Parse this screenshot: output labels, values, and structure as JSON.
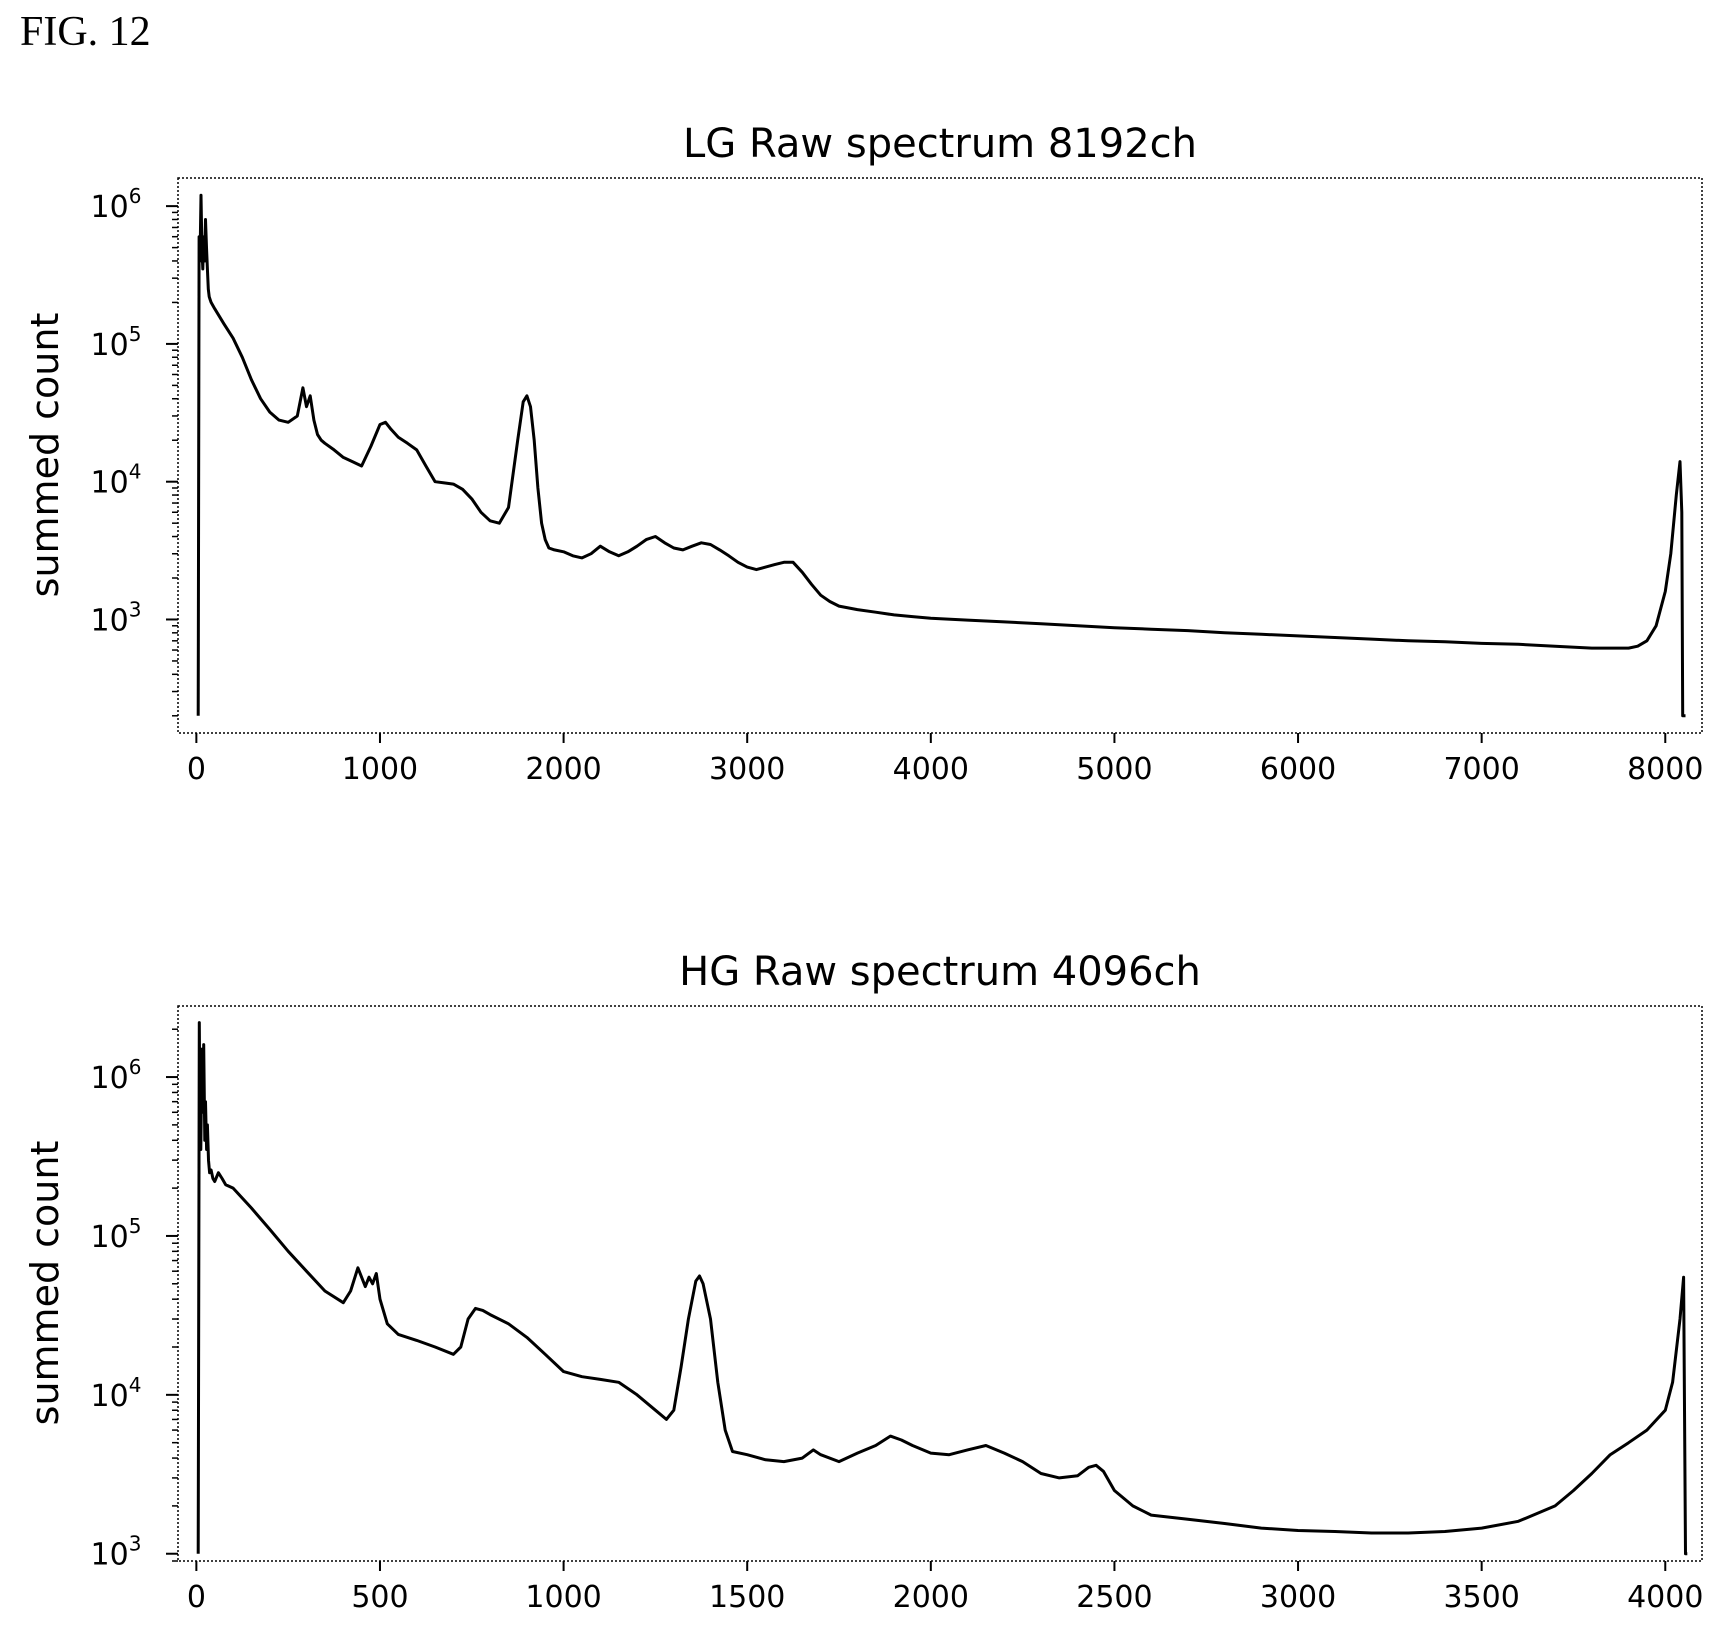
{
  "figure_label": "FIG. 12",
  "chart_data": [
    {
      "type": "line",
      "title": "LG Raw spectrum 8192ch",
      "xlabel": "",
      "ylabel": "summed count",
      "yscale": "log",
      "xlim": [
        -100,
        8200
      ],
      "ylim": [
        150,
        1600000
      ],
      "x_ticks": [
        0,
        1000,
        2000,
        3000,
        4000,
        5000,
        6000,
        7000,
        8000
      ],
      "x_tick_labels": [
        "0",
        "1000",
        "2000",
        "3000",
        "4000",
        "5000",
        "6000",
        "7000",
        "8000"
      ],
      "y_ticks": [
        1000,
        10000,
        100000,
        1000000
      ],
      "y_tick_labels": [
        [
          "10",
          "3"
        ],
        [
          "10",
          "4"
        ],
        [
          "10",
          "5"
        ],
        [
          "10",
          "6"
        ]
      ],
      "grid": false,
      "series": [
        {
          "x": [
            10,
            15,
            20,
            25,
            30,
            35,
            40,
            45,
            50,
            55,
            60,
            65,
            70,
            75,
            80,
            100,
            150,
            200,
            250,
            300,
            350,
            400,
            450,
            500,
            550,
            580,
            600,
            620,
            640,
            660,
            680,
            700,
            750,
            800,
            850,
            900,
            950,
            1000,
            1030,
            1060,
            1100,
            1150,
            1200,
            1250,
            1300,
            1350,
            1400,
            1450,
            1500,
            1550,
            1600,
            1650,
            1700,
            1750,
            1780,
            1800,
            1820,
            1840,
            1860,
            1880,
            1900,
            1920,
            1950,
            2000,
            2050,
            2100,
            2150,
            2200,
            2250,
            2300,
            2350,
            2400,
            2450,
            2500,
            2550,
            2600,
            2650,
            2700,
            2750,
            2800,
            2850,
            2900,
            2950,
            3000,
            3050,
            3100,
            3150,
            3200,
            3250,
            3300,
            3350,
            3400,
            3450,
            3500,
            3600,
            3700,
            3800,
            3900,
            4000,
            4200,
            4400,
            4600,
            4800,
            5000,
            5200,
            5400,
            5600,
            5800,
            6000,
            6200,
            6400,
            6600,
            6800,
            7000,
            7200,
            7400,
            7600,
            7800,
            7850,
            7900,
            7950,
            8000,
            8030,
            8060,
            8080,
            8090,
            8095,
            8100,
            8110
          ],
          "y": [
            200,
            600000,
            400000,
            1200000,
            500000,
            350000,
            600000,
            400000,
            800000,
            500000,
            350000,
            250000,
            220000,
            210000,
            200000,
            180000,
            140000,
            110000,
            80000,
            55000,
            40000,
            32000,
            28000,
            27000,
            30000,
            48000,
            35000,
            42000,
            28000,
            22000,
            20000,
            19000,
            17000,
            15000,
            14000,
            13000,
            18000,
            26000,
            27000,
            24000,
            21000,
            19000,
            17000,
            13000,
            10000,
            9800,
            9600,
            8800,
            7500,
            6000,
            5200,
            5000,
            6500,
            20000,
            38000,
            42000,
            35000,
            20000,
            9000,
            5000,
            3800,
            3300,
            3200,
            3100,
            2900,
            2800,
            3000,
            3400,
            3100,
            2900,
            3100,
            3400,
            3800,
            4000,
            3600,
            3300,
            3200,
            3400,
            3600,
            3500,
            3200,
            2900,
            2600,
            2400,
            2300,
            2400,
            2500,
            2600,
            2600,
            2200,
            1800,
            1500,
            1350,
            1250,
            1180,
            1130,
            1080,
            1050,
            1020,
            990,
            960,
            930,
            900,
            870,
            850,
            830,
            800,
            780,
            760,
            740,
            720,
            700,
            690,
            670,
            660,
            640,
            620,
            620,
            640,
            700,
            900,
            1600,
            3000,
            8000,
            14000,
            6000,
            200,
            200,
            200
          ]
        }
      ]
    },
    {
      "type": "line",
      "title": "HG Raw spectrum 4096ch",
      "xlabel": "",
      "ylabel": "summed count",
      "yscale": "log",
      "xlim": [
        -50,
        4100
      ],
      "ylim": [
        900,
        2800000
      ],
      "x_ticks": [
        0,
        500,
        1000,
        1500,
        2000,
        2500,
        3000,
        3500,
        4000
      ],
      "x_tick_labels": [
        "0",
        "500",
        "1000",
        "1500",
        "2000",
        "2500",
        "3000",
        "3500",
        "4000"
      ],
      "y_ticks": [
        1000,
        10000,
        100000,
        1000000
      ],
      "y_tick_labels": [
        [
          "10",
          "3"
        ],
        [
          "10",
          "4"
        ],
        [
          "10",
          "5"
        ],
        [
          "10",
          "6"
        ]
      ],
      "grid": false,
      "series": [
        {
          "x": [
            5,
            8,
            10,
            12,
            15,
            18,
            20,
            23,
            25,
            28,
            30,
            33,
            36,
            40,
            45,
            50,
            60,
            70,
            80,
            100,
            150,
            200,
            250,
            300,
            350,
            400,
            420,
            440,
            460,
            470,
            480,
            490,
            500,
            520,
            550,
            600,
            650,
            700,
            720,
            740,
            760,
            780,
            800,
            850,
            900,
            950,
            1000,
            1050,
            1100,
            1150,
            1200,
            1250,
            1280,
            1300,
            1320,
            1340,
            1360,
            1370,
            1380,
            1400,
            1420,
            1440,
            1460,
            1500,
            1550,
            1600,
            1650,
            1680,
            1700,
            1750,
            1800,
            1850,
            1890,
            1920,
            1950,
            2000,
            2050,
            2100,
            2150,
            2200,
            2250,
            2300,
            2350,
            2400,
            2430,
            2450,
            2470,
            2500,
            2550,
            2600,
            2700,
            2800,
            2900,
            3000,
            3100,
            3200,
            3300,
            3400,
            3500,
            3600,
            3700,
            3750,
            3800,
            3850,
            3900,
            3950,
            4000,
            4020,
            4040,
            4050,
            4055,
            4060
          ],
          "y": [
            1000,
            2200000,
            500000,
            350000,
            1500000,
            600000,
            1600000,
            400000,
            700000,
            350000,
            500000,
            300000,
            250000,
            260000,
            230000,
            220000,
            250000,
            230000,
            210000,
            200000,
            150000,
            110000,
            80000,
            60000,
            45000,
            38000,
            45000,
            63000,
            48000,
            55000,
            50000,
            58000,
            40000,
            28000,
            24000,
            22000,
            20000,
            18000,
            20000,
            30000,
            35000,
            34000,
            32000,
            28000,
            23000,
            18000,
            14000,
            13000,
            12500,
            12000,
            10000,
            8000,
            7000,
            8000,
            15000,
            30000,
            52000,
            56000,
            50000,
            30000,
            12000,
            6000,
            4400,
            4200,
            3900,
            3800,
            4000,
            4500,
            4200,
            3800,
            4300,
            4800,
            5500,
            5200,
            4800,
            4300,
            4200,
            4500,
            4800,
            4300,
            3800,
            3200,
            3000,
            3100,
            3500,
            3600,
            3300,
            2500,
            2000,
            1750,
            1650,
            1550,
            1450,
            1400,
            1380,
            1350,
            1350,
            1380,
            1450,
            1600,
            2000,
            2500,
            3200,
            4200,
            5000,
            6000,
            8000,
            12000,
            30000,
            55000,
            1000,
            1000
          ]
        }
      ]
    }
  ]
}
